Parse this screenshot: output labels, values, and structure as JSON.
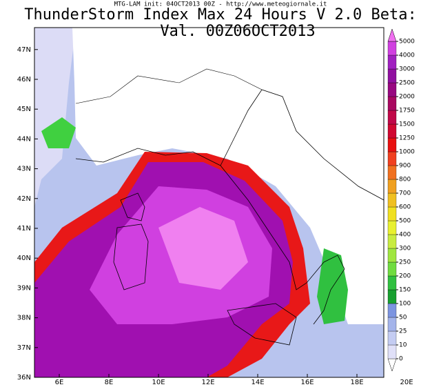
{
  "header": "MTG-LAM init: 04OCT2013 00Z - http://www.meteogiornale.it",
  "title": "ThunderStorm Index Max 24 Hours V 2.0 Beta:",
  "subtitle": "Val. 00Z06OCT2013",
  "lat_labels": [
    "36N",
    "37N",
    "38N",
    "39N",
    "40N",
    "41N",
    "42N",
    "43N",
    "44N",
    "45N",
    "46N",
    "47N"
  ],
  "lon_labels": [
    "6E",
    "8E",
    "10E",
    "12E",
    "14E",
    "16E",
    "18E",
    "20E"
  ],
  "colorbar": {
    "levels": [
      0,
      10,
      25,
      50,
      100,
      150,
      200,
      250,
      300,
      400,
      500,
      600,
      700,
      800,
      900,
      1000,
      1250,
      1500,
      1750,
      2000,
      2500,
      3000,
      4000,
      5000
    ],
    "colors": [
      "#ffffff",
      "#e0e0f8",
      "#c4ccf2",
      "#a4b4ea",
      "#7c94e0",
      "#18a030",
      "#30c040",
      "#70dc40",
      "#a0e640",
      "#c8ec40",
      "#e8f030",
      "#f0e020",
      "#f0c020",
      "#f0a020",
      "#f07020",
      "#f04020",
      "#e81010",
      "#d00830",
      "#c00848",
      "#a80860",
      "#980880",
      "#9010a0",
      "#a020c0",
      "#d040e0",
      "#f070f0"
    ]
  }
}
